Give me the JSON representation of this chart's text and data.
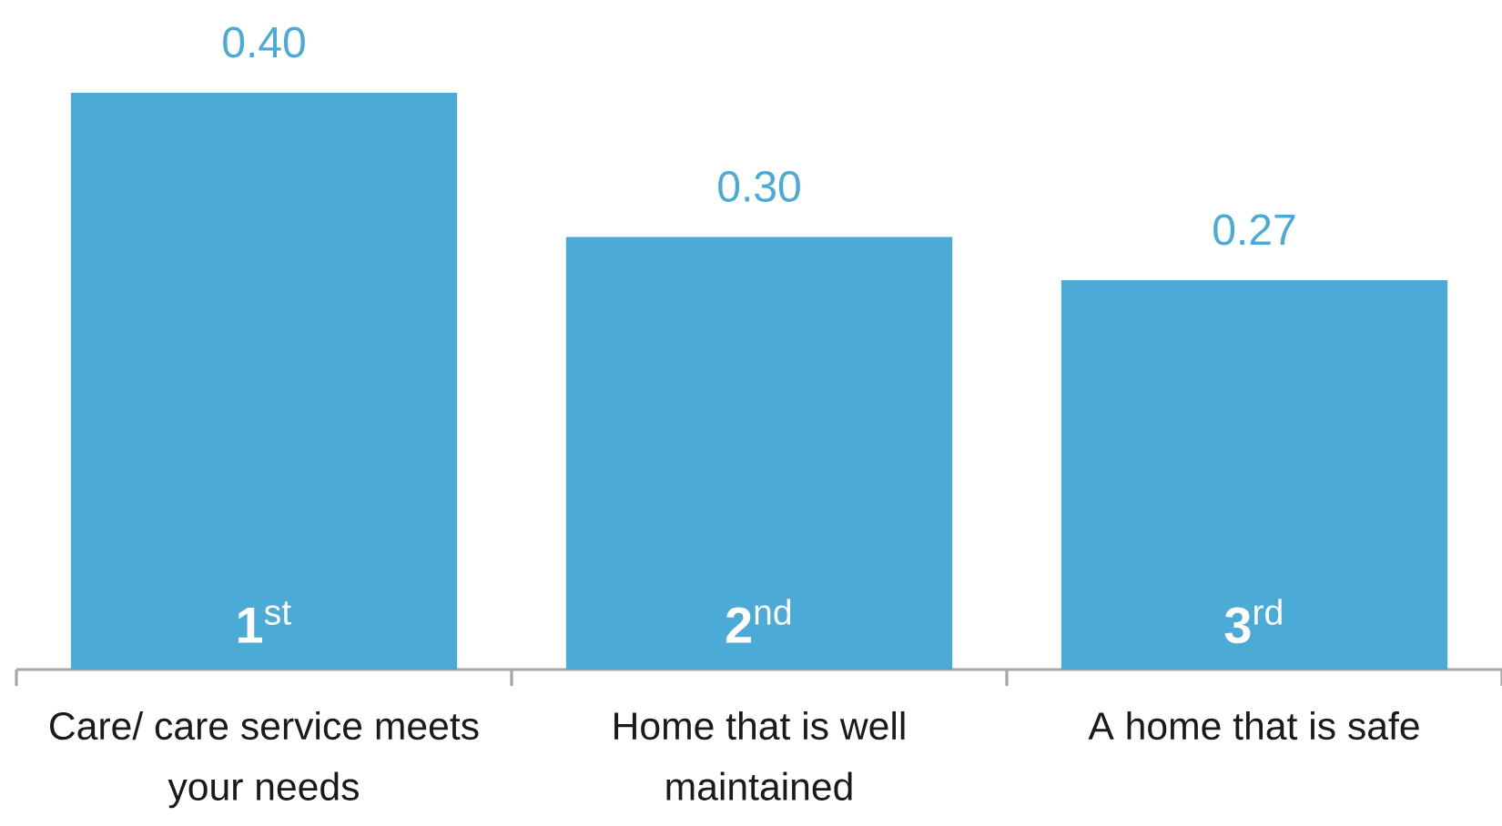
{
  "chart_data": {
    "type": "bar",
    "categories": [
      "Care/ care service meets your needs",
      "Home that is well maintained",
      "A home that is safe"
    ],
    "values": [
      0.4,
      0.3,
      0.27
    ],
    "color": "#4BAAD6",
    "value_labels": [
      "0.40",
      "0.30",
      "0.27"
    ],
    "tick_labels": "x",
    "annotations": [
      {
        "text": "**1**$^{st}$",
        "x": "Care/ care service meets your needs",
        "y": 0
      },
      {
        "text": "**2**$^{nd}$",
        "x": "Home that is well maintained",
        "y": 0
      },
      {
        "text": "**3**$^{rd}$",
        "x": "A home that is safe",
        "y": 0
      }
    ]
  }
}
